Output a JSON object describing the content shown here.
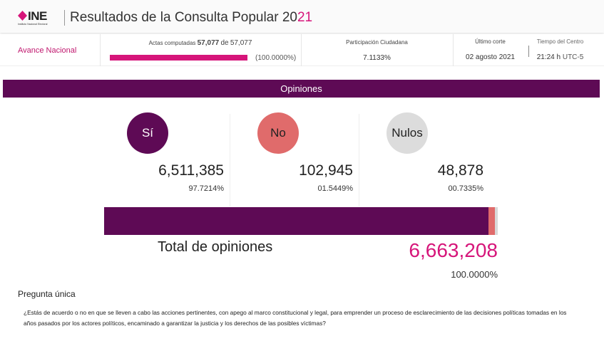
{
  "header": {
    "logo_text": "INE",
    "logo_subtitle": "Instituto Nacional Electoral",
    "title_main": "Resultados de la Consulta Popular 20",
    "title_highlight": "21"
  },
  "info": {
    "avance_label": "Avance Nacional",
    "actas_label": "Actas computadas",
    "actas_computed": "57,077",
    "actas_of": "de",
    "actas_total": "57,077",
    "actas_percent": "(100.0000%)",
    "actas_progress": 100,
    "participacion_label": "Participación Ciudadana",
    "participacion_value": "7.1133%",
    "corte_label": "Último corte",
    "corte_value": "02 agosto 2021",
    "tiempo_label": "Tiempo del Centro",
    "tiempo_value": "21:24 h",
    "tiempo_zone": "UTC-5"
  },
  "opiniones": {
    "title": "Opiniones",
    "options": [
      {
        "label": "Sí",
        "votes": "6,511,385",
        "percent": "97.7214%",
        "share": 97.7214,
        "color": "#5e0a55"
      },
      {
        "label": "No",
        "votes": "102,945",
        "percent": "01.5449%",
        "share": 1.5449,
        "color": "#e06b6b"
      },
      {
        "label": "Nulos",
        "votes": "48,878",
        "percent": "00.7335%",
        "share": 0.7335,
        "color": "#d9d9d9"
      }
    ],
    "total_label": "Total de opiniones",
    "total_value": "6,663,208",
    "total_percent": "100.0000%"
  },
  "pregunta": {
    "title": "Pregunta única",
    "text": "¿Estás de acuerdo o no en que se lleven a cabo las acciones pertinentes, con apego al marco constitucional y legal, para emprender un proceso de esclarecimiento de las decisiones políticas tomadas en los años pasados por los actores políticos, encaminado a garantizar la justicia y los derechos de las posibles víctimas?"
  },
  "colors": {
    "brand": "#d6157a",
    "primary": "#5e0a55"
  }
}
